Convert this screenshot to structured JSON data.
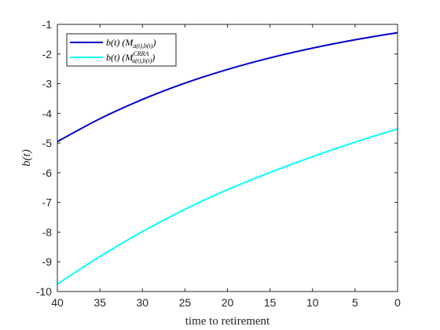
{
  "chart_data": {
    "type": "line",
    "xlabel": "time to retirement",
    "ylabel": "b(t)",
    "xlim": [
      40,
      0
    ],
    "ylim": [
      -10,
      -1
    ],
    "x_reversed": true,
    "grid": false,
    "legend_position": "top-left",
    "xticks": [
      "40",
      "35",
      "30",
      "25",
      "20",
      "15",
      "10",
      "5",
      "0"
    ],
    "yticks": [
      "-1",
      "-2",
      "-3",
      "-4",
      "-5",
      "-6",
      "-7",
      "-8",
      "-9",
      "-10"
    ],
    "x": [
      40,
      35,
      30,
      25,
      20,
      15,
      10,
      5,
      0
    ],
    "series": [
      {
        "name": "b(t) (M_{a(t),b(t)})",
        "legend_main": "b(t) (M",
        "legend_sub": "a(t),b(t)",
        "legend_sup": "",
        "legend_close": ")",
        "color": "#0000cd",
        "values": [
          -4.95,
          -4.18,
          -3.53,
          -2.98,
          -2.52,
          -2.13,
          -1.8,
          -1.52,
          -1.28
        ]
      },
      {
        "name": "b(t) (M^{CRRA}_{a(t),b(t)})",
        "legend_main": "b(t) (M",
        "legend_sub": "a(t),b(t)",
        "legend_sup": "CRRA",
        "legend_close": ")",
        "color": "#00ffff",
        "values": [
          -9.75,
          -8.82,
          -7.98,
          -7.23,
          -6.57,
          -5.99,
          -5.46,
          -4.97,
          -4.52
        ]
      }
    ]
  }
}
